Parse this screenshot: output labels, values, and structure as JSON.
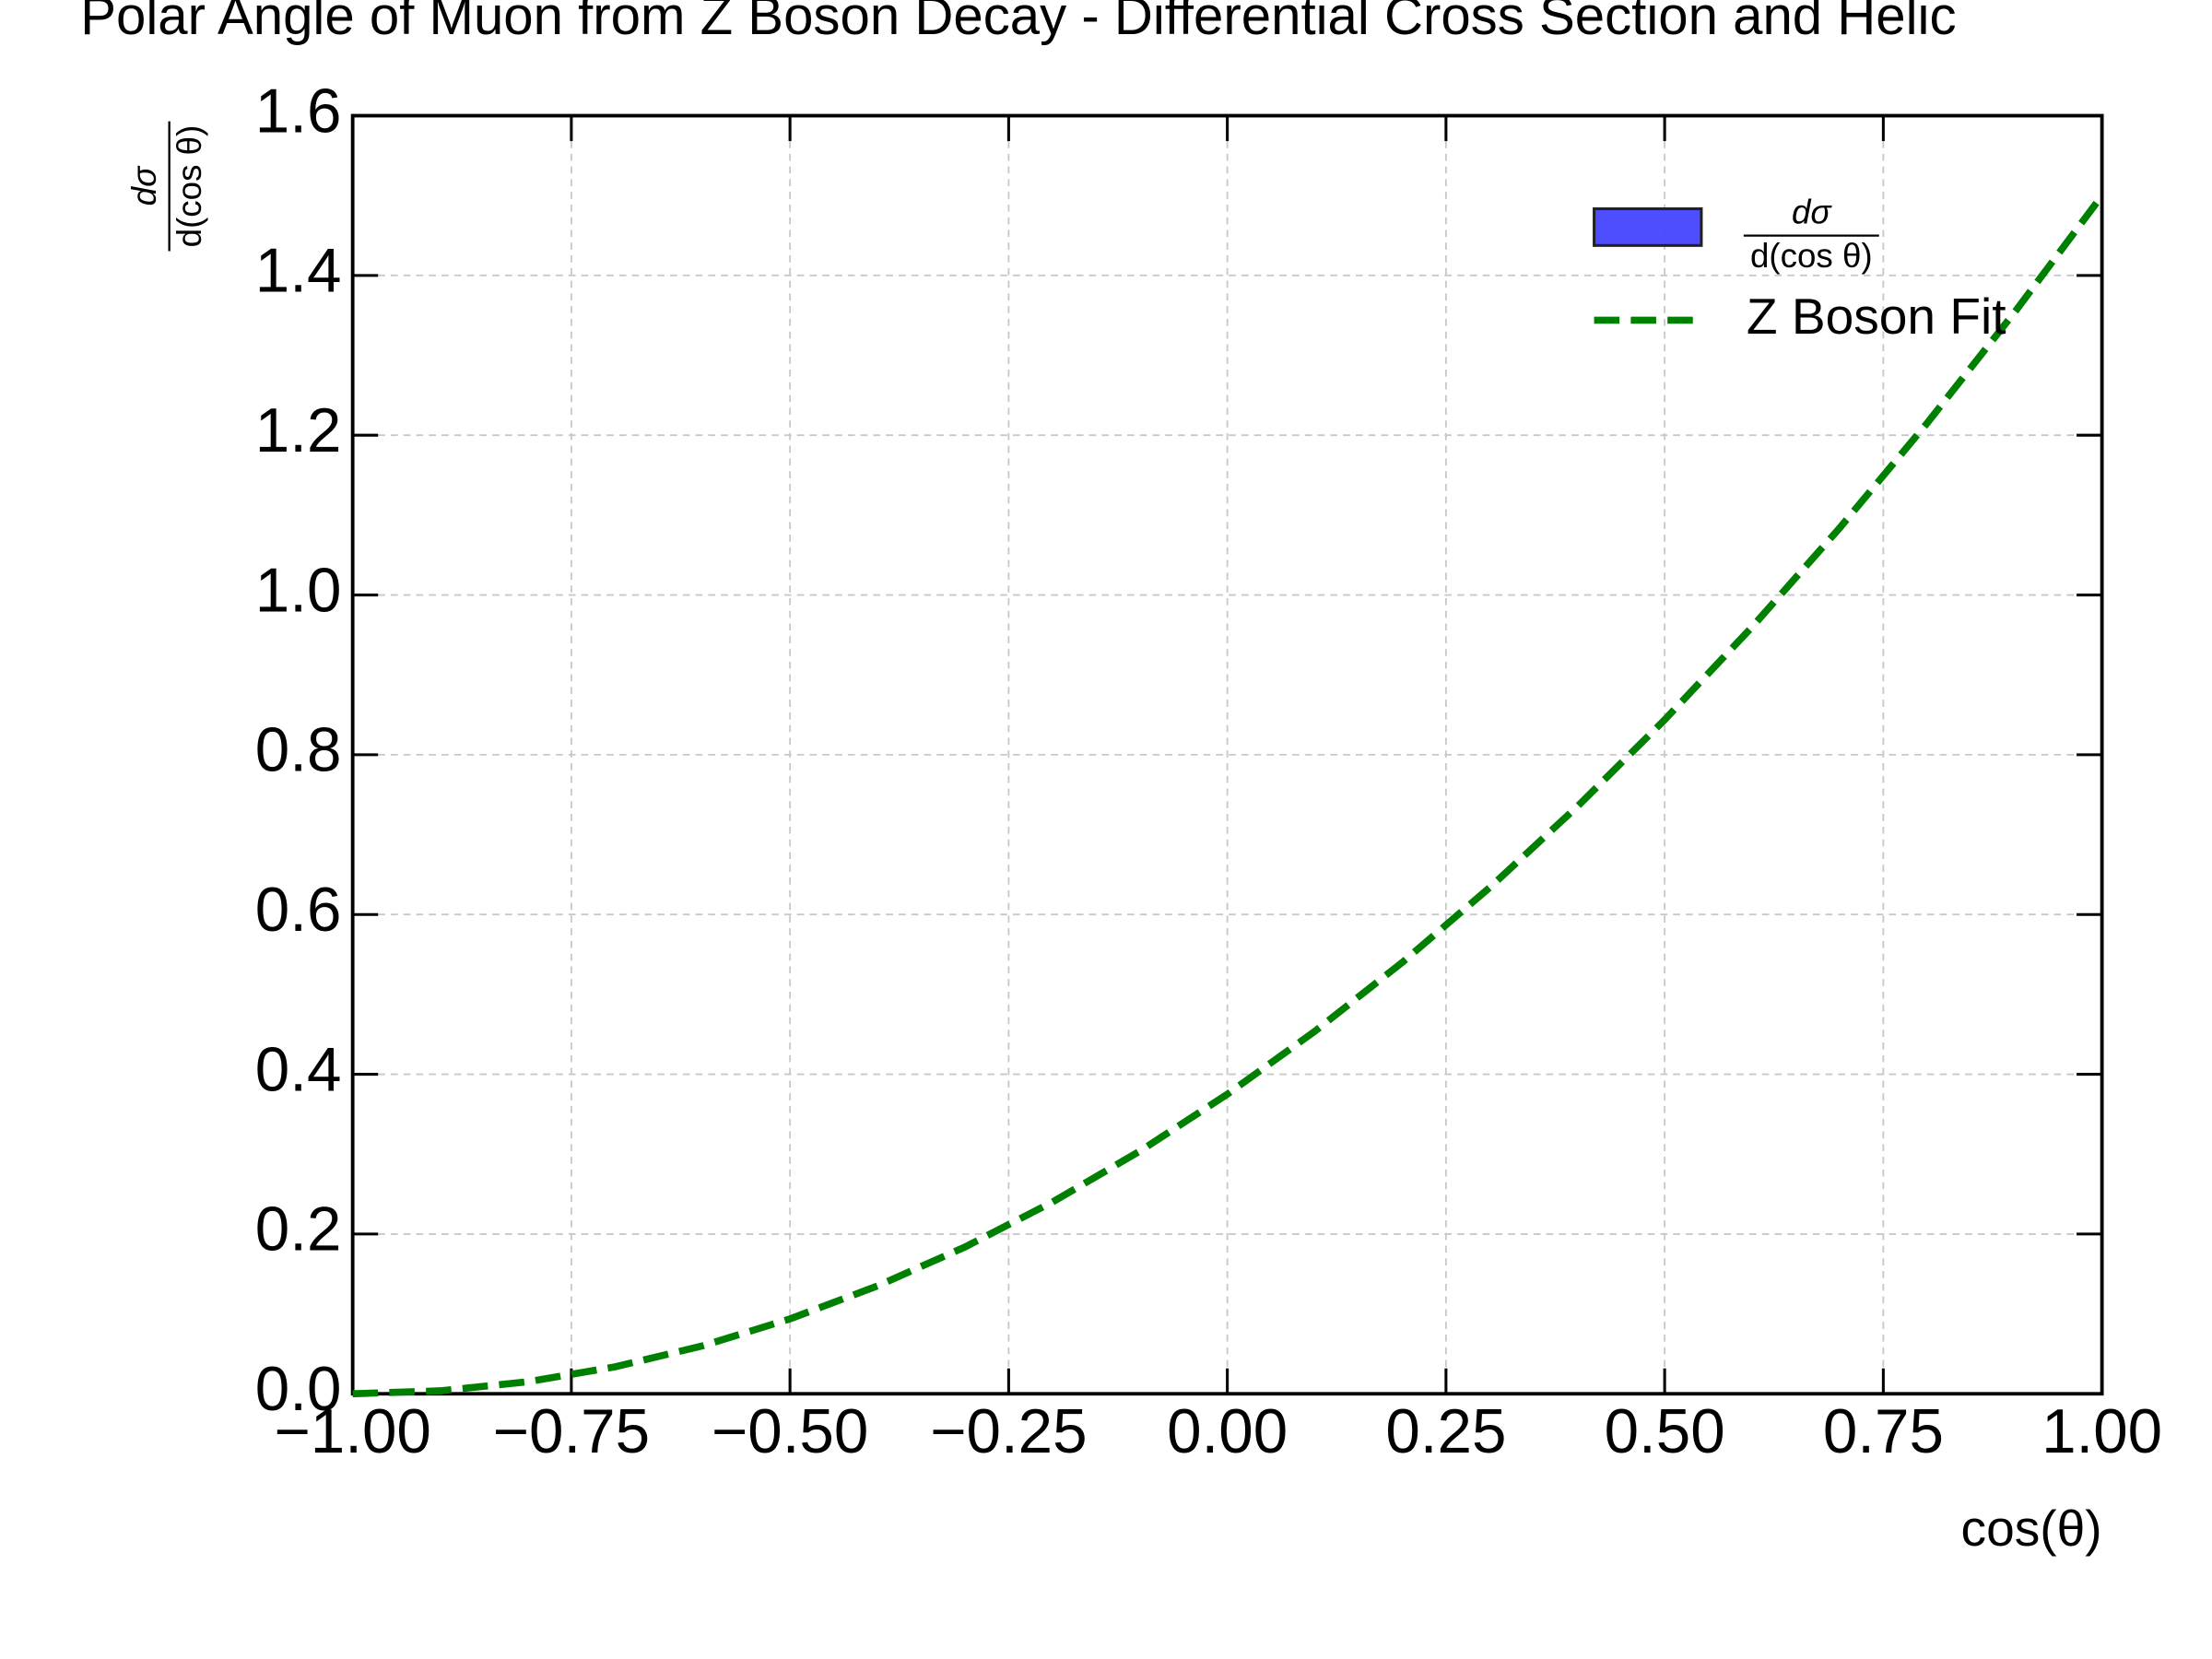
{
  "chart_data": {
    "type": "line",
    "title": "Polar Angle of Muon from Z Boson Decay - Differential Cross Section and Helic",
    "xlabel": "cos(θ)",
    "ylabel": {
      "numerator": "dσ",
      "denominator": "d(cos θ)"
    },
    "x": [
      -1.0,
      -0.9,
      -0.8,
      -0.7,
      -0.6,
      -0.5,
      -0.4,
      -0.3,
      -0.2,
      -0.1,
      0.0,
      0.1,
      0.2,
      0.3,
      0.4,
      0.5,
      0.6,
      0.7,
      0.8,
      0.9,
      1.0
    ],
    "series": [
      {
        "name": "Z Boson Fit",
        "color": "#008000",
        "values": [
          0.0,
          0.00375,
          0.015,
          0.03375,
          0.06,
          0.09375,
          0.135,
          0.18375,
          0.24,
          0.30375,
          0.375,
          0.45375,
          0.54,
          0.63375,
          0.735,
          0.84375,
          0.96,
          1.08375,
          1.215,
          1.35375,
          1.5
        ]
      }
    ],
    "hist_legend": {
      "numerator": "dσ",
      "denominator": "d(cos θ)",
      "color": "#4444ff"
    },
    "xlim": [
      -1,
      1
    ],
    "ylim": [
      0,
      1.6
    ],
    "xticks": [
      {
        "value": -1,
        "label": "−1.00"
      },
      {
        "value": -0.75,
        "label": "−0.75"
      },
      {
        "value": -0.5,
        "label": "−0.50"
      },
      {
        "value": -0.25,
        "label": "−0.25"
      },
      {
        "value": 0,
        "label": "0.00"
      },
      {
        "value": 0.25,
        "label": "0.25"
      },
      {
        "value": 0.5,
        "label": "0.50"
      },
      {
        "value": 0.75,
        "label": "0.75"
      },
      {
        "value": 1,
        "label": "1.00"
      }
    ],
    "yticks": [
      {
        "value": 0,
        "label": "0.0"
      },
      0.2,
      0.4,
      0.6,
      0.8,
      {
        "value": 1,
        "label": "1.0"
      },
      1.2,
      1.4,
      1.6
    ],
    "grid": true,
    "legend": "upper right"
  }
}
